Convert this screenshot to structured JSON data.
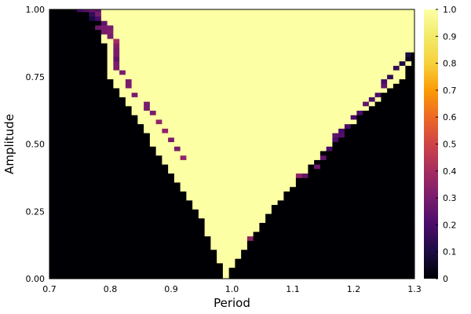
{
  "chart_data": {
    "type": "heatmap",
    "title": "",
    "xlabel": "Period",
    "ylabel": "Amplitude",
    "xlim": [
      0.7,
      1.3
    ],
    "ylim": [
      0.0,
      1.0
    ],
    "grid": false,
    "colormap": "inferno",
    "colorbar": {
      "range": [
        0,
        1
      ],
      "ticks": [
        "0",
        "0.1",
        "0.2",
        "0.3",
        "0.4",
        "0.5",
        "0.6",
        "0.7",
        "0.8",
        "0.9",
        "1.0"
      ]
    },
    "x_ticks": [
      "0.7",
      "0.8",
      "0.9",
      "1.0",
      "1.1",
      "1.2",
      "1.3"
    ],
    "y_ticks": [
      "0.00",
      "0.25",
      "0.50",
      "0.75",
      "1.00"
    ],
    "x_range": [
      0.7,
      1.3
    ],
    "y_range": [
      0.0,
      1.0
    ],
    "nx": 61,
    "ny": 61,
    "boundary": {
      "left": [
        [
          0.0,
          0.99
        ],
        [
          0.25,
          0.945
        ],
        [
          0.5,
          0.87
        ],
        [
          0.75,
          0.8
        ],
        [
          1.0,
          0.78
        ]
      ],
      "right": [
        [
          0.0,
          0.99
        ],
        [
          0.25,
          1.06
        ],
        [
          0.5,
          1.16
        ],
        [
          0.75,
          1.28
        ],
        [
          0.85,
          1.3
        ]
      ]
    },
    "transition_cells": [
      {
        "x": 0.745,
        "y": 1.0,
        "value": 0.2
      },
      {
        "x": 0.755,
        "y": 1.0,
        "value": 0.25
      },
      {
        "x": 0.765,
        "y": 1.0,
        "value": 0.28
      },
      {
        "x": 0.775,
        "y": 1.0,
        "value": 0.25
      },
      {
        "x": 0.765,
        "y": 0.985,
        "value": 0.15
      },
      {
        "x": 0.775,
        "y": 0.985,
        "value": 0.3
      },
      {
        "x": 0.765,
        "y": 0.97,
        "value": 0.1
      },
      {
        "x": 0.775,
        "y": 0.97,
        "value": 0.2
      },
      {
        "x": 0.785,
        "y": 0.955,
        "value": 0.25
      },
      {
        "x": 0.775,
        "y": 0.94,
        "value": 0.3
      },
      {
        "x": 0.785,
        "y": 0.94,
        "value": 0.3
      },
      {
        "x": 0.775,
        "y": 0.925,
        "value": 0.28
      },
      {
        "x": 0.795,
        "y": 0.925,
        "value": 0.3
      },
      {
        "x": 0.785,
        "y": 0.91,
        "value": 0.3
      },
      {
        "x": 0.795,
        "y": 0.91,
        "value": 0.32
      },
      {
        "x": 0.795,
        "y": 0.895,
        "value": 0.3
      },
      {
        "x": 0.805,
        "y": 0.88,
        "value": 0.4
      },
      {
        "x": 0.805,
        "y": 0.865,
        "value": 0.32
      },
      {
        "x": 0.805,
        "y": 0.85,
        "value": 0.3
      },
      {
        "x": 0.805,
        "y": 0.835,
        "value": 0.3
      },
      {
        "x": 0.805,
        "y": 0.82,
        "value": 0.25
      },
      {
        "x": 0.805,
        "y": 0.805,
        "value": 0.3
      },
      {
        "x": 0.815,
        "y": 0.79,
        "value": 0.3
      },
      {
        "x": 0.825,
        "y": 0.76,
        "value": 0.3
      },
      {
        "x": 0.835,
        "y": 0.73,
        "value": 0.3
      },
      {
        "x": 0.835,
        "y": 0.715,
        "value": 0.3
      },
      {
        "x": 0.845,
        "y": 0.685,
        "value": 0.3
      },
      {
        "x": 0.855,
        "y": 0.655,
        "value": 0.3
      },
      {
        "x": 0.855,
        "y": 0.64,
        "value": 0.3
      },
      {
        "x": 0.865,
        "y": 0.61,
        "value": 0.3
      },
      {
        "x": 0.875,
        "y": 0.58,
        "value": 0.35
      },
      {
        "x": 0.885,
        "y": 0.55,
        "value": 0.35
      },
      {
        "x": 0.895,
        "y": 0.52,
        "value": 0.3
      },
      {
        "x": 0.905,
        "y": 0.475,
        "value": 0.3
      },
      {
        "x": 0.915,
        "y": 0.445,
        "value": 0.35
      },
      {
        "x": 1.035,
        "y": 0.15,
        "value": 0.35
      },
      {
        "x": 1.115,
        "y": 0.375,
        "value": 0.35
      },
      {
        "x": 1.125,
        "y": 0.39,
        "value": 0.25
      },
      {
        "x": 1.135,
        "y": 0.42,
        "value": 0.28
      },
      {
        "x": 1.145,
        "y": 0.45,
        "value": 0.25
      },
      {
        "x": 1.155,
        "y": 0.48,
        "value": 0.2
      },
      {
        "x": 1.165,
        "y": 0.51,
        "value": 0.2
      },
      {
        "x": 1.165,
        "y": 0.525,
        "value": 0.25
      },
      {
        "x": 1.175,
        "y": 0.555,
        "value": 0.2
      },
      {
        "x": 1.175,
        "y": 0.54,
        "value": 0.22
      },
      {
        "x": 1.185,
        "y": 0.57,
        "value": 0.2
      },
      {
        "x": 1.195,
        "y": 0.6,
        "value": 0.2
      },
      {
        "x": 1.205,
        "y": 0.615,
        "value": 0.2
      },
      {
        "x": 1.215,
        "y": 0.645,
        "value": 0.25
      },
      {
        "x": 1.225,
        "y": 0.66,
        "value": 0.2
      },
      {
        "x": 1.235,
        "y": 0.69,
        "value": 0.2
      },
      {
        "x": 1.245,
        "y": 0.72,
        "value": 0.25
      },
      {
        "x": 1.255,
        "y": 0.735,
        "value": 0.2
      },
      {
        "x": 1.265,
        "y": 0.75,
        "value": 0.15
      },
      {
        "x": 1.275,
        "y": 0.78,
        "value": 0.15
      },
      {
        "x": 1.285,
        "y": 0.795,
        "value": 0.1
      },
      {
        "x": 1.295,
        "y": 0.825,
        "value": 0.1
      },
      {
        "x": 1.295,
        "y": 0.81,
        "value": 0.05
      }
    ]
  }
}
